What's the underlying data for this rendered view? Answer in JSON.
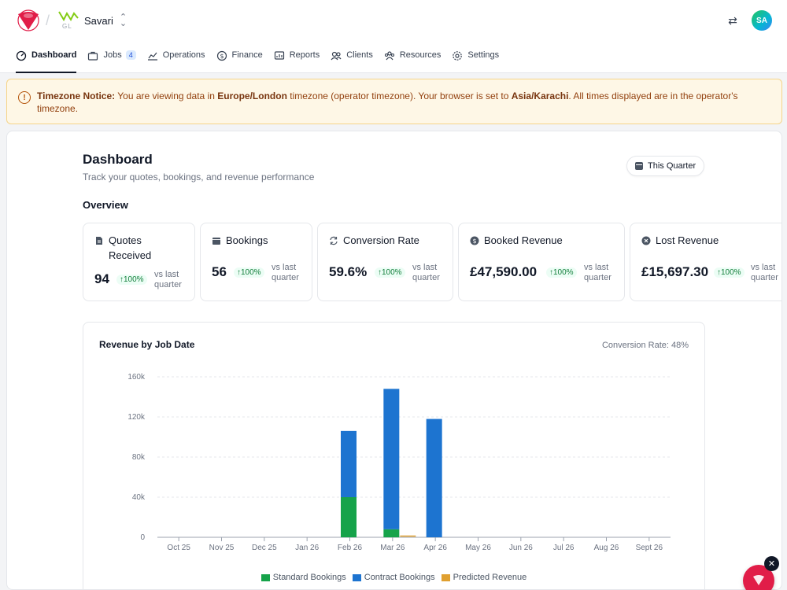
{
  "header": {
    "org_logo_text": "GL",
    "org_name": "Savari",
    "user_initials": "SA"
  },
  "nav": [
    {
      "label": "Dashboard",
      "icon": "dashboard-icon",
      "active": true
    },
    {
      "label": "Jobs",
      "icon": "briefcase-icon",
      "badge": "4"
    },
    {
      "label": "Operations",
      "icon": "trend-icon"
    },
    {
      "label": "Finance",
      "icon": "dollar-icon"
    },
    {
      "label": "Reports",
      "icon": "report-icon"
    },
    {
      "label": "Clients",
      "icon": "users-icon"
    },
    {
      "label": "Resources",
      "icon": "team-icon"
    },
    {
      "label": "Settings",
      "icon": "gear-icon"
    }
  ],
  "notice": {
    "label": "Timezone Notice:",
    "text1": " You are viewing data in ",
    "tz_operator": "Europe/London",
    "text2": " timezone (operator timezone). Your browser is set to ",
    "tz_browser": "Asia/Karachi",
    "text3": ". All times displayed are in the operator's timezone."
  },
  "page": {
    "title": "Dashboard",
    "subtitle": "Track your quotes, bookings, and revenue performance",
    "period": "This Quarter",
    "overview": "Overview"
  },
  "cards": [
    {
      "title": "Quotes Received",
      "value": "94",
      "delta": "100%",
      "vs": "vs last quarter",
      "icon": "document-icon"
    },
    {
      "title": "Bookings",
      "value": "56",
      "delta": "100%",
      "vs": "vs last quarter",
      "icon": "calendar-icon"
    },
    {
      "title": "Conversion Rate",
      "value": "59.6%",
      "delta": "100%",
      "vs": "vs last quarter",
      "icon": "refresh-icon"
    },
    {
      "title": "Booked Revenue",
      "value": "£47,590.00",
      "delta": "100%",
      "vs": "vs last quarter",
      "icon": "dollar-circle-icon"
    },
    {
      "title": "Lost Revenue",
      "value": "£15,697.30",
      "delta": "100%",
      "vs": "vs last quarter",
      "icon": "x-circle-icon"
    }
  ],
  "chart_meta": {
    "conversion": "Conversion Rate: 48%"
  },
  "colors": {
    "standard": "#16a34a",
    "contract": "#1d74d0",
    "predicted": "#e0a030"
  },
  "chart_data": {
    "type": "bar",
    "title": "Revenue by Job Date",
    "stacked": true,
    "categories": [
      "Oct 25",
      "Nov 25",
      "Dec 25",
      "Jan 26",
      "Feb 26",
      "Mar 26",
      "Apr 26",
      "May 26",
      "Jun 26",
      "Jul 26",
      "Aug 26",
      "Sept 26"
    ],
    "series": [
      {
        "name": "Standard Bookings",
        "stack": "bookings",
        "values": [
          0,
          0,
          0,
          0,
          40000,
          8000,
          0,
          0,
          0,
          0,
          0,
          0
        ]
      },
      {
        "name": "Contract Bookings",
        "stack": "bookings",
        "values": [
          0,
          0,
          0,
          0,
          66000,
          140000,
          118000,
          0,
          0,
          0,
          0,
          0
        ]
      },
      {
        "name": "Predicted Revenue",
        "stack": "predicted",
        "values": [
          0,
          0,
          0,
          0,
          0,
          1000,
          0,
          0,
          0,
          0,
          0,
          0
        ]
      }
    ],
    "yticks": [
      "0",
      "40k",
      "80k",
      "120k",
      "160k"
    ],
    "ylim": [
      0,
      160000
    ],
    "grid": true,
    "legend": "bottom"
  }
}
